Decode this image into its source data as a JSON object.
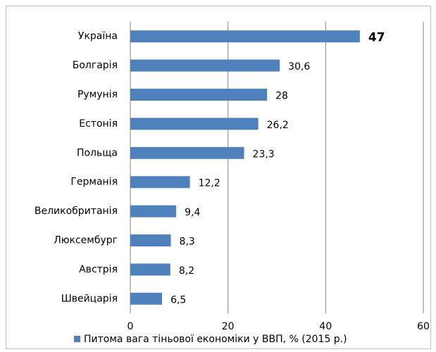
{
  "chart_data": {
    "type": "bar",
    "orientation": "horizontal",
    "categories": [
      "Україна",
      "Болгарія",
      "Румунія",
      "Естонія",
      "Польща",
      "Германія",
      "Великобританія",
      "Люксембург",
      "Австрія",
      "Швейцарія"
    ],
    "series": [
      {
        "name": "Питома вага тіньової економіки у ВВП, % (2015 р.)",
        "color": "#4f81bd",
        "values": [
          47,
          30.6,
          28,
          26.2,
          23.3,
          12.2,
          9.4,
          8.3,
          8.2,
          6.5
        ],
        "value_labels": [
          "47",
          "30,6",
          "28",
          "26,2",
          "23,3",
          "12,2",
          "9,4",
          "8,3",
          "8,2",
          "6,5"
        ]
      }
    ],
    "xlim": [
      0,
      60
    ],
    "xticks": [
      0,
      20,
      40,
      60
    ],
    "grid": true,
    "legend": "bottom"
  }
}
